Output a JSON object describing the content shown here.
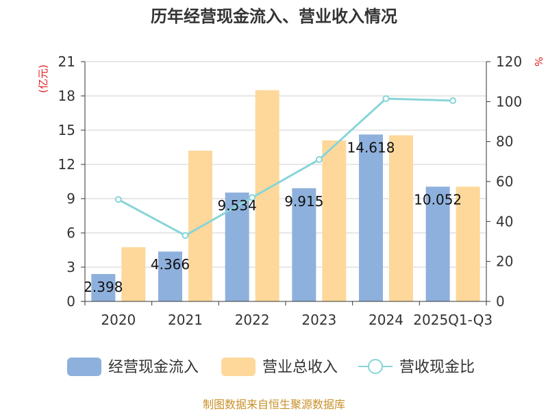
{
  "chart_data": {
    "type": "bar",
    "title": "历年经营现金流入、营业收入情况",
    "categories": [
      "2020",
      "2021",
      "2022",
      "2023",
      "2024",
      "2025Q1-Q3"
    ],
    "left_axis": {
      "unit": "(亿元)",
      "ylim": [
        0,
        21
      ],
      "ticks": [
        0,
        3,
        6,
        9,
        12,
        15,
        18,
        21
      ]
    },
    "right_axis": {
      "unit": "%",
      "ylim": [
        0,
        120
      ],
      "ticks": [
        0,
        20,
        40,
        60,
        80,
        100,
        120
      ]
    },
    "series": [
      {
        "name": "经营现金流入",
        "kind": "bar",
        "axis": "left",
        "color": "#8eb0dc",
        "values": [
          2.398,
          4.366,
          9.534,
          9.915,
          14.618,
          10.052
        ],
        "labels": [
          "2.398",
          "4.366",
          "9.534",
          "9.915",
          "14.618",
          "10.052"
        ]
      },
      {
        "name": "营业总收入",
        "kind": "bar",
        "axis": "left",
        "color": "#fdd89a",
        "values": [
          4.75,
          13.2,
          18.5,
          14.1,
          14.55,
          10.05
        ]
      },
      {
        "name": "营收现金比",
        "kind": "line",
        "axis": "right",
        "color": "#88d4d8",
        "values": [
          51,
          33,
          52,
          71,
          101.5,
          100.5
        ]
      }
    ],
    "legend_position": "bottom",
    "grid": true
  },
  "footer": {
    "source": "制图数据来自恒生聚源数据库"
  }
}
